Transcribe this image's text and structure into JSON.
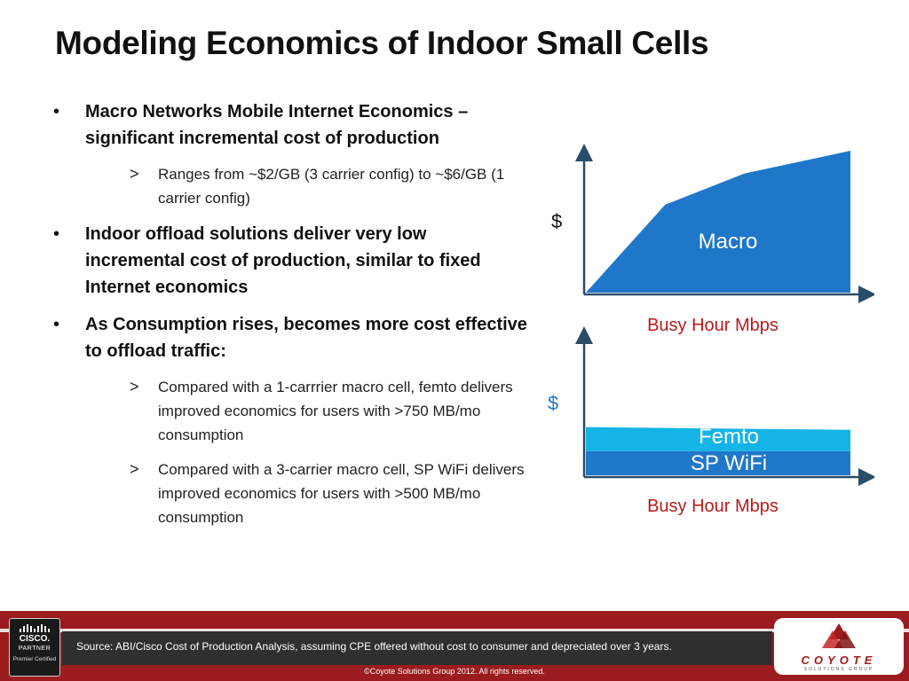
{
  "slide": {
    "title": "Modeling Economics of Indoor Small Cells",
    "bullets": [
      {
        "text": "Macro Networks Mobile Internet Economics – significant incremental cost of production",
        "sub": [
          "Ranges from ~$2/GB (3 carrier config) to ~$6/GB (1 carrier config)"
        ]
      },
      {
        "text": "Indoor offload solutions deliver very low incremental cost of production, similar to fixed Internet economics",
        "sub": []
      },
      {
        "text": "As Consumption rises, becomes more cost effective to offload traffic:",
        "sub": [
          "Compared with a 1-carrrier macro cell, femto delivers improved economics for users with >750 MB/mo consumption",
          "Compared with a 3-carrier macro cell, SP WiFi delivers improved economics for users with >500 MB/mo consumption"
        ]
      }
    ],
    "bullet_symbol": "•",
    "sub_symbol": ">"
  },
  "chart_data": [
    {
      "type": "area",
      "ylabel": "$",
      "xlabel": "Busy Hour Mbps",
      "xlim": [
        0,
        10
      ],
      "ylim": [
        0,
        10
      ],
      "series": [
        {
          "name": "Macro",
          "x": [
            0,
            3,
            6,
            10
          ],
          "values": [
            0,
            6.2,
            8.4,
            10
          ],
          "color": "#1f77c9"
        }
      ]
    },
    {
      "type": "area",
      "ylabel": "$",
      "xlabel": "Busy Hour Mbps",
      "xlim": [
        0,
        10
      ],
      "ylim": [
        0,
        10
      ],
      "series": [
        {
          "name": "SP WiFi",
          "x": [
            0,
            10
          ],
          "values": [
            1.7,
            1.7
          ],
          "color": "#1f77c9"
        },
        {
          "name": "Femto",
          "x": [
            0,
            10
          ],
          "values": [
            1.7,
            1.5
          ],
          "color": "#14b4e6"
        }
      ]
    }
  ],
  "footer": {
    "source": "Source: ABI/Cisco Cost of Production Analysis, assuming CPE offered without cost to consumer and depreciated over 3 years.",
    "copyright": "©Coyote Solutions Group 2012. All rights reserved.",
    "cisco_brand": "CISCO.",
    "cisco_partner": "PARTNER",
    "cisco_cert": "Premier Certified",
    "coyote_name": "COYOTE",
    "coyote_tag": "SOLUTIONS GROUP"
  },
  "colors": {
    "title": "#111111",
    "accent_red": "#b71c1c",
    "footer_red": "#9b1b1f",
    "macro_blue": "#1f77c9",
    "femto_cyan": "#14b4e6"
  }
}
